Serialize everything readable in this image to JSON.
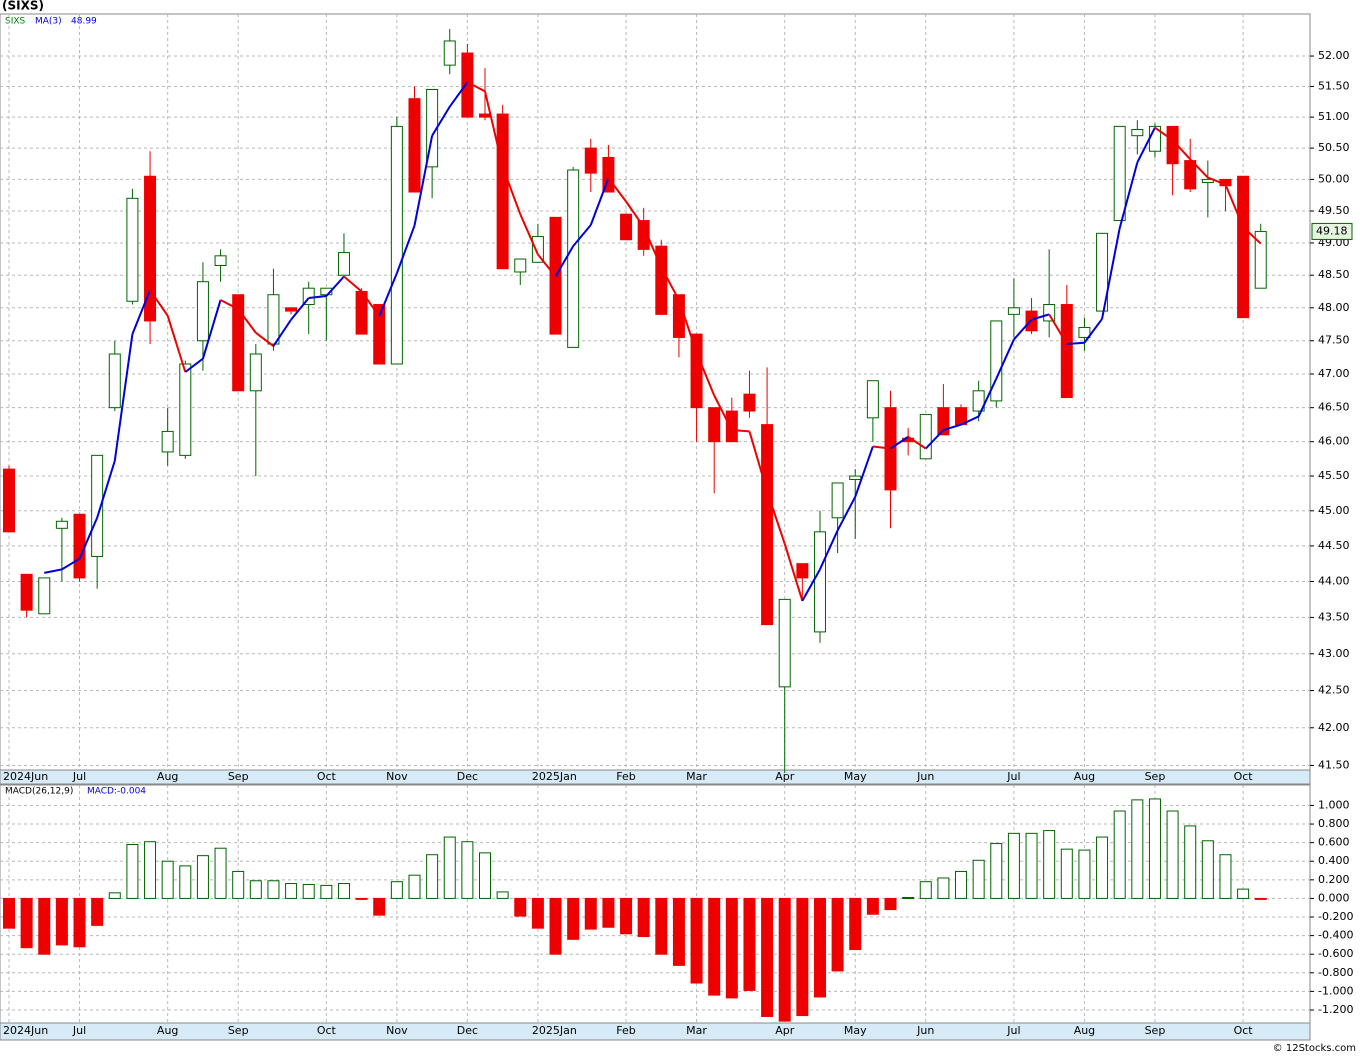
{
  "chart_data": [
    {
      "type": "candlestick",
      "title": "(SIXS)",
      "ticker": "SIXS",
      "categories": [
        "2024Jun",
        null,
        null,
        null,
        "Jul",
        null,
        null,
        null,
        null,
        "Aug",
        null,
        null,
        null,
        "Sep",
        null,
        null,
        null,
        null,
        "Oct",
        null,
        null,
        null,
        "Nov",
        null,
        null,
        null,
        "Dec",
        null,
        null,
        null,
        "2025Jan",
        null,
        null,
        null,
        null,
        "Feb",
        null,
        null,
        null,
        "Mar",
        null,
        null,
        null,
        null,
        "Apr",
        null,
        null,
        null,
        "May",
        null,
        null,
        null,
        "Jun",
        null,
        null,
        null,
        null,
        "Jul",
        null,
        null,
        null,
        "Aug",
        null,
        null,
        null,
        "Sep",
        null,
        null,
        null,
        null,
        "Oct",
        null
      ],
      "open": [
        45.6,
        44.1,
        43.55,
        44.75,
        44.95,
        44.35,
        46.5,
        48.1,
        50.05,
        45.85,
        45.8,
        47.5,
        48.65,
        48.2,
        46.75,
        47.45,
        48.0,
        48.05,
        48.2,
        48.5,
        48.25,
        48.05,
        47.15,
        51.3,
        50.2,
        51.85,
        52.05,
        51.05,
        51.05,
        48.55,
        48.7,
        49.4,
        47.4,
        50.5,
        50.35,
        49.45,
        49.35,
        48.95,
        48.2,
        47.6,
        46.5,
        46.45,
        46.7,
        46.25,
        42.55,
        44.25,
        43.3,
        44.9,
        45.45,
        46.35,
        46.5,
        46.05,
        45.75,
        46.5,
        46.5,
        46.45,
        46.6,
        47.9,
        47.95,
        47.8,
        48.05,
        47.55,
        47.95,
        49.35,
        50.7,
        50.45,
        50.85,
        50.3,
        49.95,
        50.0,
        50.05,
        48.3
      ],
      "high": [
        45.65,
        44.1,
        44.05,
        44.9,
        44.95,
        45.8,
        47.5,
        49.85,
        50.45,
        46.5,
        47.2,
        48.7,
        48.9,
        48.2,
        47.45,
        48.6,
        48.0,
        48.4,
        48.3,
        49.15,
        48.3,
        48.05,
        51.0,
        51.5,
        51.45,
        52.45,
        52.2,
        51.8,
        51.2,
        48.75,
        49.3,
        49.4,
        50.2,
        50.65,
        50.55,
        49.45,
        49.55,
        49.05,
        48.2,
        47.6,
        46.5,
        46.65,
        47.05,
        47.1,
        43.75,
        44.25,
        45.0,
        45.4,
        45.6,
        46.9,
        46.75,
        46.2,
        46.4,
        46.85,
        46.55,
        46.9,
        47.8,
        48.45,
        48.15,
        48.9,
        48.35,
        47.85,
        49.15,
        50.85,
        50.95,
        50.9,
        50.85,
        50.65,
        50.3,
        50.0,
        50.05,
        49.3
      ],
      "low": [
        44.7,
        43.5,
        43.55,
        44.0,
        44.0,
        43.9,
        46.45,
        48.05,
        47.45,
        45.65,
        45.75,
        47.05,
        48.4,
        46.75,
        45.5,
        47.35,
        47.9,
        47.6,
        47.5,
        48.5,
        47.6,
        47.15,
        47.15,
        49.8,
        49.7,
        51.7,
        51.0,
        50.95,
        48.6,
        48.35,
        48.7,
        47.6,
        47.4,
        49.8,
        49.8,
        49.05,
        48.8,
        47.9,
        47.25,
        46.0,
        45.25,
        46.0,
        46.35,
        43.4,
        41.4,
        43.75,
        43.15,
        44.4,
        44.6,
        46.0,
        44.75,
        45.8,
        45.75,
        46.1,
        46.25,
        46.3,
        46.5,
        47.55,
        47.6,
        47.55,
        46.65,
        47.35,
        47.95,
        49.35,
        50.4,
        50.35,
        49.75,
        49.8,
        49.4,
        49.5,
        47.85,
        48.3
      ],
      "close": [
        44.7,
        43.6,
        44.05,
        44.85,
        44.05,
        45.8,
        47.3,
        49.7,
        47.8,
        46.15,
        47.15,
        48.4,
        48.8,
        46.75,
        47.3,
        48.2,
        47.95,
        48.3,
        48.3,
        48.85,
        47.6,
        47.15,
        50.85,
        49.8,
        51.45,
        52.25,
        51.0,
        51.0,
        48.6,
        48.75,
        49.1,
        47.6,
        50.15,
        50.1,
        49.8,
        49.05,
        48.9,
        47.9,
        47.55,
        46.5,
        46.0,
        46.0,
        46.45,
        43.4,
        43.75,
        44.05,
        44.7,
        45.4,
        45.5,
        46.9,
        45.3,
        46.0,
        46.4,
        46.1,
        46.25,
        46.75,
        47.8,
        48.0,
        47.65,
        48.05,
        46.65,
        47.7,
        49.15,
        50.85,
        50.8,
        50.85,
        50.25,
        49.85,
        50.0,
        49.9,
        47.85,
        49.18
      ],
      "up_color": "#006400",
      "down_color": "#ee0000",
      "series": [
        {
          "name": "MA(3)",
          "color": "#0000dd",
          "down_color": "#ee0000",
          "values": [
            null,
            null,
            44.12,
            44.17,
            44.32,
            44.9,
            45.72,
            47.6,
            48.27,
            47.88,
            47.03,
            47.23,
            48.12,
            47.98,
            47.62,
            47.42,
            47.82,
            48.15,
            48.18,
            48.48,
            48.25,
            47.87,
            48.53,
            49.27,
            50.7,
            51.17,
            51.57,
            51.42,
            50.2,
            49.45,
            48.82,
            48.48,
            48.95,
            49.28,
            50.02,
            49.65,
            49.25,
            48.62,
            48.12,
            47.32,
            46.68,
            46.17,
            46.15,
            45.28,
            44.53,
            43.73,
            44.17,
            44.72,
            45.2,
            45.93,
            45.9,
            46.07,
            45.9,
            46.17,
            46.25,
            46.37,
            46.93,
            47.52,
            47.82,
            47.9,
            47.45,
            47.47,
            47.83,
            49.23,
            50.27,
            50.83,
            50.63,
            50.32,
            50.03,
            49.92,
            49.25,
            48.99
          ]
        }
      ],
      "log_scale": true,
      "grid": true,
      "ylim": [
        41.44,
        52.7
      ],
      "yticks": [
        {
          "value": 52,
          "label": "52.00"
        },
        {
          "value": 51.5,
          "label": "51.50"
        },
        {
          "value": 51,
          "label": "51.00"
        },
        {
          "value": 50.5,
          "label": "50.50"
        },
        {
          "value": 50,
          "label": "50.00"
        },
        {
          "value": 49.5,
          "label": "49.50"
        },
        {
          "value": 49,
          "label": "49.00"
        },
        {
          "value": 48.5,
          "label": "48.50"
        },
        {
          "value": 48,
          "label": "48.00"
        },
        {
          "value": 47.5,
          "label": "47.50"
        },
        {
          "value": 47,
          "label": "47.00"
        },
        {
          "value": 46.5,
          "label": "46.50"
        },
        {
          "value": 46,
          "label": "46.00"
        },
        {
          "value": 45.5,
          "label": "45.50"
        },
        {
          "value": 45,
          "label": "45.00"
        },
        {
          "value": 44.5,
          "label": "44.50"
        },
        {
          "value": 44,
          "label": "44.00"
        },
        {
          "value": 43.5,
          "label": "43.50"
        },
        {
          "value": 43,
          "label": "43.00"
        },
        {
          "value": 42.5,
          "label": "42.50"
        },
        {
          "value": 42,
          "label": "42.00"
        },
        {
          "value": 41.5,
          "label": "41.50"
        }
      ]
    },
    {
      "type": "bar",
      "title": "MACD(26,12,9)",
      "legend": "MACD:-0.004",
      "values": [
        -0.32,
        -0.53,
        -0.6,
        -0.5,
        -0.52,
        -0.29,
        0.06,
        0.58,
        0.61,
        0.4,
        0.35,
        0.46,
        0.54,
        0.29,
        0.19,
        0.19,
        0.16,
        0.15,
        0.14,
        0.16,
        -0.01,
        -0.18,
        0.18,
        0.25,
        0.47,
        0.66,
        0.61,
        0.49,
        0.07,
        -0.19,
        -0.32,
        -0.6,
        -0.44,
        -0.33,
        -0.31,
        -0.38,
        -0.41,
        -0.6,
        -0.72,
        -0.91,
        -1.04,
        -1.07,
        -0.99,
        -1.27,
        -1.32,
        -1.26,
        -1.06,
        -0.78,
        -0.55,
        -0.17,
        -0.12,
        0.01,
        0.18,
        0.22,
        0.29,
        0.41,
        0.59,
        0.7,
        0.7,
        0.73,
        0.53,
        0.52,
        0.66,
        0.94,
        1.06,
        1.07,
        0.94,
        0.78,
        0.62,
        0.47,
        0.1,
        -0.004
      ],
      "up_color": "#006400",
      "down_color": "#ee0000",
      "grid": true,
      "ylim": [
        -1.34,
        1.22
      ],
      "yticks": [
        {
          "value": 1,
          "label": "1.000"
        },
        {
          "value": 0.8,
          "label": "0.800"
        },
        {
          "value": 0.6,
          "label": "0.600"
        },
        {
          "value": 0.4,
          "label": "0.400"
        },
        {
          "value": 0.2,
          "label": "0.200"
        },
        {
          "value": 0,
          "label": "0.000"
        },
        {
          "value": -0.2,
          "label": "-0.200"
        },
        {
          "value": -0.4,
          "label": "-0.400"
        },
        {
          "value": -0.6,
          "label": "-0.600"
        },
        {
          "value": -0.8,
          "label": "-0.800"
        },
        {
          "value": -1,
          "label": "-1.000"
        },
        {
          "value": -1.2,
          "label": "-1.200"
        }
      ]
    }
  ],
  "footer": "© 12Stocks.com"
}
